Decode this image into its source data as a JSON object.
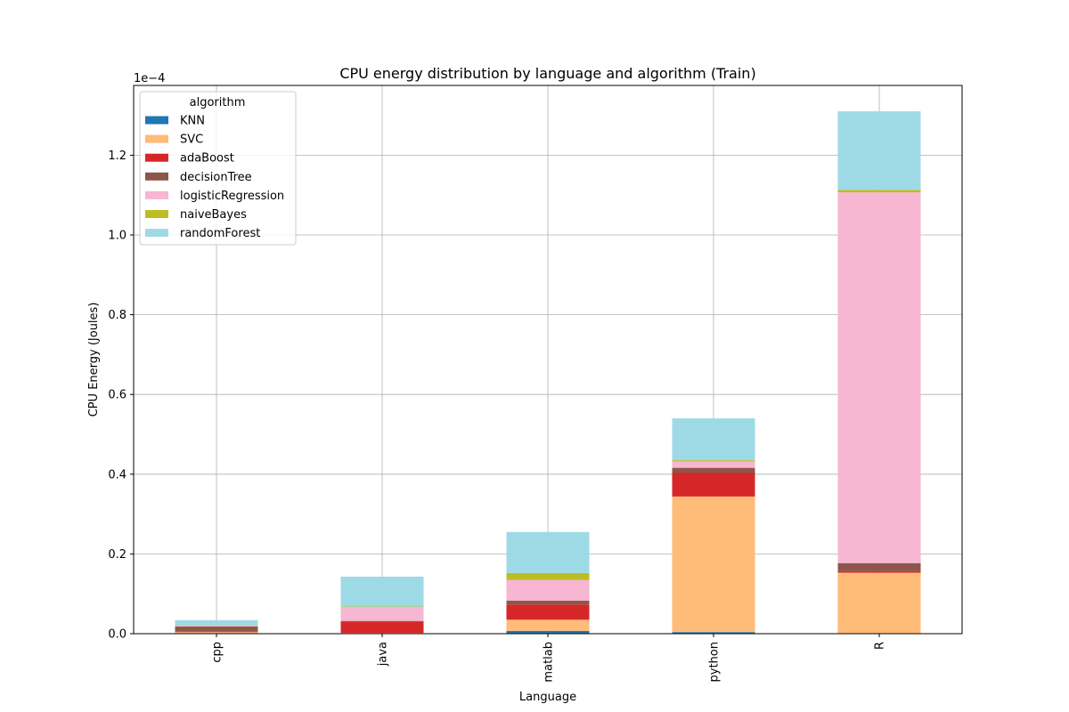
{
  "chart_data": {
    "type": "bar",
    "stacked": true,
    "title": "CPU energy distribution by language and algorithm (Train)",
    "xlabel": "Language",
    "ylabel": "CPU Energy (Joules)",
    "y_scale_label": "1e−4",
    "ylim": [
      0,
      1.375
    ],
    "yticks": [
      "0.0",
      "0.2",
      "0.4",
      "0.6",
      "0.8",
      "1.0",
      "1.2"
    ],
    "categories": [
      "cpp",
      "java",
      "matlab",
      "python",
      "R"
    ],
    "grid": true,
    "legend": {
      "title": "algorithm",
      "placement": "top-left"
    },
    "series": [
      {
        "name": "KNN",
        "color": "#1f77b4",
        "values": [
          0.001,
          0.001,
          0.007,
          0.004,
          0.001
        ]
      },
      {
        "name": "SVC",
        "color": "#ffbb78",
        "values": [
          0.003,
          0.001,
          0.028,
          0.34,
          0.152
        ]
      },
      {
        "name": "adaBoost",
        "color": "#d62728",
        "values": [
          0.002,
          0.029,
          0.038,
          0.06,
          0.004
        ]
      },
      {
        "name": "decisionTree",
        "color": "#8c564b",
        "values": [
          0.012,
          0.001,
          0.01,
          0.012,
          0.02
        ]
      },
      {
        "name": "logisticRegression",
        "color": "#f7b6d2",
        "values": [
          0.002,
          0.035,
          0.052,
          0.016,
          0.93
        ]
      },
      {
        "name": "naiveBayes",
        "color": "#bcbd22",
        "values": [
          0.001,
          0.001,
          0.017,
          0.003,
          0.006
        ]
      },
      {
        "name": "randomForest",
        "color": "#9edae5",
        "values": [
          0.013,
          0.075,
          0.103,
          0.105,
          0.197
        ]
      }
    ]
  }
}
